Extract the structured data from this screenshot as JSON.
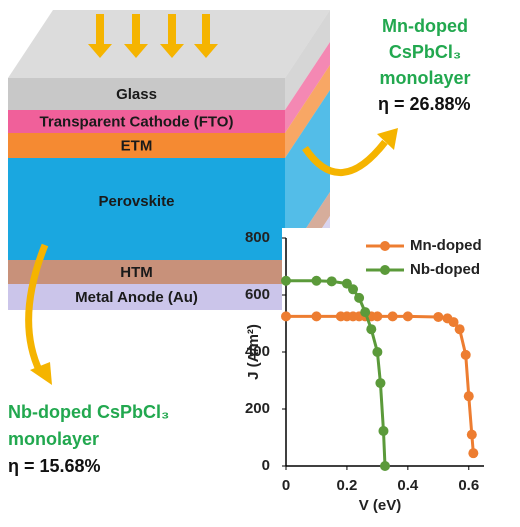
{
  "diagram": {
    "layers": [
      {
        "label": "Glass",
        "color": "#c8c8c8"
      },
      {
        "label": "Transparent Cathode (FTO)",
        "color": "#f0609a"
      },
      {
        "label": "ETM",
        "color": "#f58a32"
      },
      {
        "label": "Perovskite",
        "color": "#1aa7e0"
      },
      {
        "label": "HTM",
        "color": "#c8917a"
      },
      {
        "label": "Metal Anode (Au)",
        "color": "#cbc5ea"
      }
    ],
    "annotations": [
      {
        "lines": [
          "Mn-doped",
          "CsPbCl₃",
          "monolayer"
        ],
        "efficiency": "η = 26.88%"
      },
      {
        "lines": [
          "Nb-doped CsPbCl₃",
          "monolayer"
        ],
        "efficiency": "η = 15.68%"
      }
    ]
  },
  "chart_data": {
    "type": "line",
    "x_label": "V (eV)",
    "y_label": "J (A/m²)",
    "xlim": [
      0,
      0.65
    ],
    "ylim": [
      0,
      800
    ],
    "xticks": [
      0,
      0.2,
      0.4,
      0.6
    ],
    "yticks": [
      0,
      200,
      400,
      600,
      800
    ],
    "legend": "upper right",
    "series": [
      {
        "name": "Mn-doped",
        "color": "#ed7d31",
        "x": [
          0,
          0.1,
          0.18,
          0.2,
          0.22,
          0.24,
          0.26,
          0.28,
          0.3,
          0.35,
          0.4,
          0.5,
          0.53,
          0.55,
          0.57,
          0.59,
          0.6,
          0.61,
          0.615
        ],
        "values": [
          525,
          525,
          525,
          525,
          525,
          525,
          525,
          525,
          525,
          525,
          525,
          523,
          518,
          505,
          480,
          390,
          245,
          110,
          45
        ]
      },
      {
        "name": "Nb-doped",
        "color": "#5b9a3a",
        "x": [
          0,
          0.1,
          0.15,
          0.2,
          0.22,
          0.24,
          0.26,
          0.28,
          0.3,
          0.31,
          0.32,
          0.325
        ],
        "values": [
          650,
          650,
          648,
          640,
          620,
          590,
          540,
          480,
          400,
          291,
          123,
          0
        ]
      }
    ]
  }
}
